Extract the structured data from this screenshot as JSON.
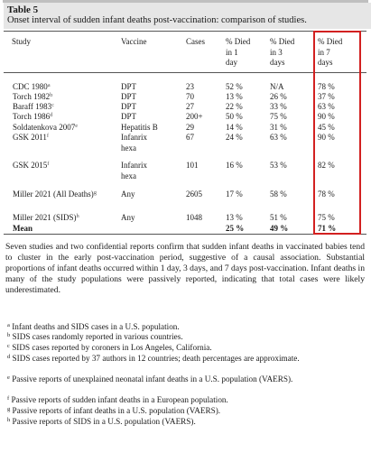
{
  "table": {
    "label": "Table 5",
    "caption": "Onset interval of sudden infant deaths post-vaccination: comparison of studies.",
    "headers": {
      "study": "Study",
      "vaccine": "Vaccine",
      "cases": "Cases",
      "died1": [
        "% Died",
        "in 1",
        "day"
      ],
      "died3": [
        "% Died",
        "in 3",
        "days"
      ],
      "died7": [
        "% Died",
        "in 7",
        "days"
      ]
    },
    "rows": [
      {
        "study": "CDC 1980",
        "note": "a",
        "vaccine": [
          "DPT"
        ],
        "cases": "23",
        "d1": "52 %",
        "d3": "N/A",
        "d7": "78 %"
      },
      {
        "study": "Torch 1982",
        "note": "b",
        "vaccine": [
          "DPT"
        ],
        "cases": "70",
        "d1": "13 %",
        "d3": "26 %",
        "d7": "37 %"
      },
      {
        "study": "Baraff 1983",
        "note": "c",
        "vaccine": [
          "DPT"
        ],
        "cases": "27",
        "d1": "22 %",
        "d3": "33 %",
        "d7": "63 %"
      },
      {
        "study": "Torch 1986",
        "note": "d",
        "vaccine": [
          "DPT"
        ],
        "cases": "200+",
        "d1": "50 %",
        "d3": "75 %",
        "d7": "90 %"
      },
      {
        "study": "Soldatenkova 2007",
        "note": "e",
        "vaccine": [
          "Hepatitis B"
        ],
        "cases": "29",
        "d1": "14 %",
        "d3": "31 %",
        "d7": "45 %"
      },
      {
        "study": "GSK 2011",
        "note": "f",
        "vaccine": [
          "Infanrix",
          "hexa"
        ],
        "cases": "67",
        "d1": "24 %",
        "d3": "63 %",
        "d7": "90 %"
      },
      {
        "study": "GSK 2015",
        "note": "f",
        "vaccine": [
          "Infanrix",
          "hexa"
        ],
        "cases": "101",
        "d1": "16 %",
        "d3": "53 %",
        "d7": "82 %"
      },
      {
        "study": "Miller 2021 (All Deaths)",
        "note": "g",
        "vaccine": [
          "Any"
        ],
        "cases": "2605",
        "d1": "17 %",
        "d3": "58 %",
        "d7": "78 %"
      },
      {
        "study": "Miller 2021 (SIDS)",
        "note": "h",
        "vaccine": [
          "Any"
        ],
        "cases": "1048",
        "d1": "13 %",
        "d3": "51 %",
        "d7": "75 %"
      },
      {
        "study": "Mean",
        "note": "",
        "vaccine": [
          ""
        ],
        "cases": "",
        "d1": "25 %",
        "d3": "49 %",
        "d7": "71 %"
      }
    ]
  },
  "summary": "Seven studies and two confidential reports confirm that sudden infant deaths in vaccinated babies tend to cluster in the early post-vaccination period, suggestive of a causal association. Substantial proportions of infant deaths occurred within 1 day, 3 days, and 7 days post-vaccination. Infant deaths in many of the study populations were passively reported, indicating that total cases were likely underestimated.",
  "footnotes": [
    {
      "mark": "a",
      "text": "Infant deaths and SIDS cases in a U.S. population."
    },
    {
      "mark": "b",
      "text": "SIDS cases randomly reported in various countries."
    },
    {
      "mark": "c",
      "text": "SIDS cases reported by coroners in Los Angeles, California."
    },
    {
      "mark": "d",
      "text": "SIDS cases reported by 37 authors in 12 countries; death percentages are approximate."
    },
    {
      "mark": "e",
      "text": "Passive reports of unexplained neonatal infant deaths in a U.S. population (VAERS)."
    },
    {
      "mark": "f",
      "text": "Passive reports of sudden infant deaths in a European population."
    },
    {
      "mark": "g",
      "text": "Passive reports of infant deaths in a U.S. population (VAERS)."
    },
    {
      "mark": "h",
      "text": "Passive reports of SIDS in a U.S. population (VAERS)."
    }
  ],
  "highlight_color": "#d22020"
}
